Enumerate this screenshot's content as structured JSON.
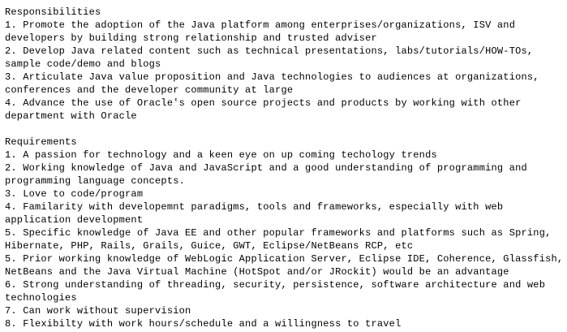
{
  "sections": [
    {
      "title": "Responsibilities",
      "items": [
        [
          "1. Promote the adoption of the Java platform among enterprises/organizations, ISV and",
          "developers by building strong relationship and trusted adviser"
        ],
        [
          "2. Develop Java related content such as technical presentations, labs/tutorials/HOW-TOs,",
          "sample code/demo and blogs"
        ],
        [
          "3. Articulate Java value proposition and Java technologies to audiences at organizations,",
          "conferences and the developer community at large"
        ],
        [
          "4. Advance the use of Oracle's open source projects and products by working with other",
          "department with Oracle"
        ]
      ]
    },
    {
      "title": "Requirements",
      "items": [
        [
          "1. A passion for technology and a keen eye on up coming techology trends"
        ],
        [
          "2. Working knowledge of Java and JavaScript and a good understanding of programming and",
          "programming language concepts."
        ],
        [
          "3. Love to code/program"
        ],
        [
          "4. Familarity with developemnt paradigms, tools and frameworks, especially with web",
          "application development"
        ],
        [
          "5. Specific knowledge of Java EE and other popular frameworks and platforms such as Spring,",
          "Hibernate, PHP, Rails, Grails, Guice, GWT, Eclipse/NetBeans RCP, etc"
        ],
        [
          "5. Prior working knowledge of WebLogic Application Server, Eclipse IDE, Coherence, Glassfish,",
          "NetBeans and the Java Virtual Machine (HotSpot and/or JRockit) would be an advantage"
        ],
        [
          "6. Strong understanding of threading, security, persistence, software architecture and web",
          "technologies"
        ],
        [
          "7. Can work without supervision"
        ],
        [
          "8. Flexibilty with work hours/schedule and a willingness to travel"
        ]
      ]
    }
  ]
}
